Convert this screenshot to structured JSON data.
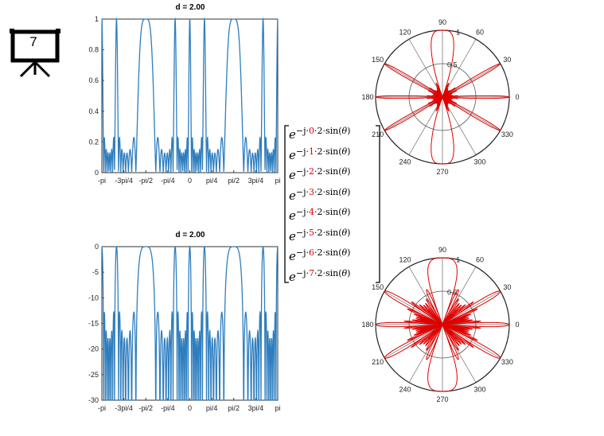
{
  "slide_number": "7",
  "matrix": {
    "rows": [
      {
        "pre": "−j·",
        "k": "0",
        "post": "·2·sin(",
        "theta": "θ",
        "close": ")"
      },
      {
        "pre": "−j·",
        "k": "1",
        "post": "·2·sin(",
        "theta": "θ",
        "close": ")"
      },
      {
        "pre": "−j·",
        "k": "2",
        "post": "·2·sin(",
        "theta": "θ",
        "close": ")"
      },
      {
        "pre": "−j·",
        "k": "3",
        "post": "·2·sin(",
        "theta": "θ",
        "close": ")"
      },
      {
        "pre": "−j·",
        "k": "4",
        "post": "·2·sin(",
        "theta": "θ",
        "close": ")"
      },
      {
        "pre": "−j·",
        "k": "5",
        "post": "·2·sin(",
        "theta": "θ",
        "close": ")"
      },
      {
        "pre": "−j·",
        "k": "6",
        "post": "·2·sin(",
        "theta": "θ",
        "close": ")"
      },
      {
        "pre": "−j·",
        "k": "7",
        "post": "·2·sin(",
        "theta": "θ",
        "close": ")"
      }
    ],
    "base": "e",
    "index_color": "#e00000"
  },
  "colors": {
    "line": "#2e7ebf",
    "polar": "#e00000",
    "axis": "#333333",
    "grid": "#888888"
  },
  "chart_data": [
    {
      "type": "line",
      "title": "d = 2.00",
      "x_ticks": [
        "-pi",
        "-3pi/4",
        "-pi/2",
        "-pi/4",
        "0",
        "pi/4",
        "pi/2",
        "3pi/4",
        "pi"
      ],
      "y_ticks": [
        "0",
        "0.2",
        "0.4",
        "0.6",
        "0.8",
        "1"
      ],
      "xlim": [
        -3.1416,
        3.1416
      ],
      "ylim": [
        0,
        1
      ],
      "grid": false,
      "series": [
        {
          "model": "array_factor",
          "elements": 8,
          "spacing_wavelengths": 2,
          "scale": "linear"
        }
      ]
    },
    {
      "type": "line",
      "title": "d = 2.00",
      "x_ticks": [
        "-pi",
        "-3pi/4",
        "-pi/2",
        "-pi/4",
        "0",
        "pi/4",
        "pi/2",
        "3pi/4",
        "pi"
      ],
      "y_ticks": [
        "0",
        "-5",
        "-10",
        "-15",
        "-20",
        "-25",
        "-30"
      ],
      "xlim": [
        -3.1416,
        3.1416
      ],
      "ylim": [
        -30,
        0
      ],
      "grid": false,
      "series": [
        {
          "model": "array_factor",
          "elements": 8,
          "spacing_wavelengths": 2,
          "scale": "dB"
        }
      ]
    },
    {
      "type": "polar",
      "angle_labels": [
        "0",
        "30",
        "60",
        "90",
        "120",
        "150",
        "180",
        "210",
        "240",
        "270",
        "300",
        "330"
      ],
      "radial_labels": [
        "0.5",
        "1"
      ],
      "rlim": [
        0,
        1
      ],
      "series": [
        {
          "model": "array_factor",
          "elements": 8,
          "spacing_wavelengths": 2,
          "scale": "linear"
        }
      ]
    },
    {
      "type": "polar",
      "angle_labels": [
        "0",
        "30",
        "60",
        "90",
        "120",
        "150",
        "180",
        "210",
        "240",
        "270",
        "300",
        "330"
      ],
      "radial_labels": [
        "0.5",
        "1"
      ],
      "rlim": [
        0,
        1
      ],
      "series": [
        {
          "model": "array_factor",
          "elements": 8,
          "spacing_wavelengths": 2,
          "scale": "dB",
          "db_floor": -30
        }
      ]
    }
  ]
}
